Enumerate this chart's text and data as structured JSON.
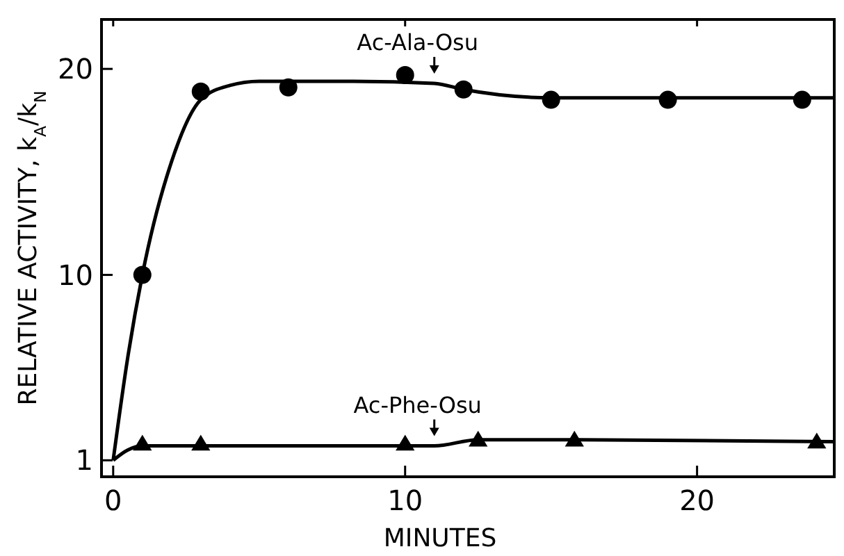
{
  "chart_data": {
    "type": "scatter",
    "xlabel": "MINUTES",
    "ylabel": "RELATIVE ACTIVITY, k$_{A}$/k$_{N}$",
    "series": [
      {
        "type": "line",
        "color": "#000000",
        "marker": "none",
        "x": [
          0,
          0.5,
          1,
          2,
          3,
          4,
          5,
          8,
          11,
          12,
          15,
          20,
          24.7
        ],
        "values": [
          1,
          6,
          10,
          15.5,
          18.5,
          19.2,
          19.4,
          19.4,
          19.3,
          19,
          18.6,
          18.6,
          18.6
        ]
      },
      {
        "type": "line",
        "color": "#000000",
        "marker": "none",
        "x": [
          0,
          0.5,
          1,
          3,
          10,
          11,
          12.5,
          16,
          24.7
        ],
        "values": [
          1,
          1.5,
          1.7,
          1.7,
          1.7,
          1.7,
          2,
          2,
          1.9
        ]
      },
      {
        "color": "#000000",
        "marker": "circle",
        "x": [
          1,
          3,
          6,
          10,
          12,
          15,
          19,
          23.6
        ],
        "values": [
          10,
          18.9,
          19.1,
          19.7,
          19,
          18.5,
          18.5,
          18.5
        ]
      },
      {
        "color": "#000000",
        "marker": "triangle",
        "x": [
          1,
          3,
          10,
          12.5,
          15.8,
          24.1
        ],
        "values": [
          1.8,
          1.8,
          1.8,
          2,
          2,
          1.9
        ]
      }
    ],
    "annotations": [
      {
        "text": "Ac-Ala-Osu",
        "x": 11,
        "y": 19.3
      },
      {
        "text": "Ac-Phe-Osu",
        "x": 11,
        "y": 1.7
      }
    ],
    "xlim": [
      -0.4,
      24.7
    ],
    "ylim": [
      0.2,
      22.4
    ],
    "xticks": [
      0,
      10,
      20
    ],
    "yticks": [
      1,
      10,
      20
    ],
    "grid": false
  }
}
